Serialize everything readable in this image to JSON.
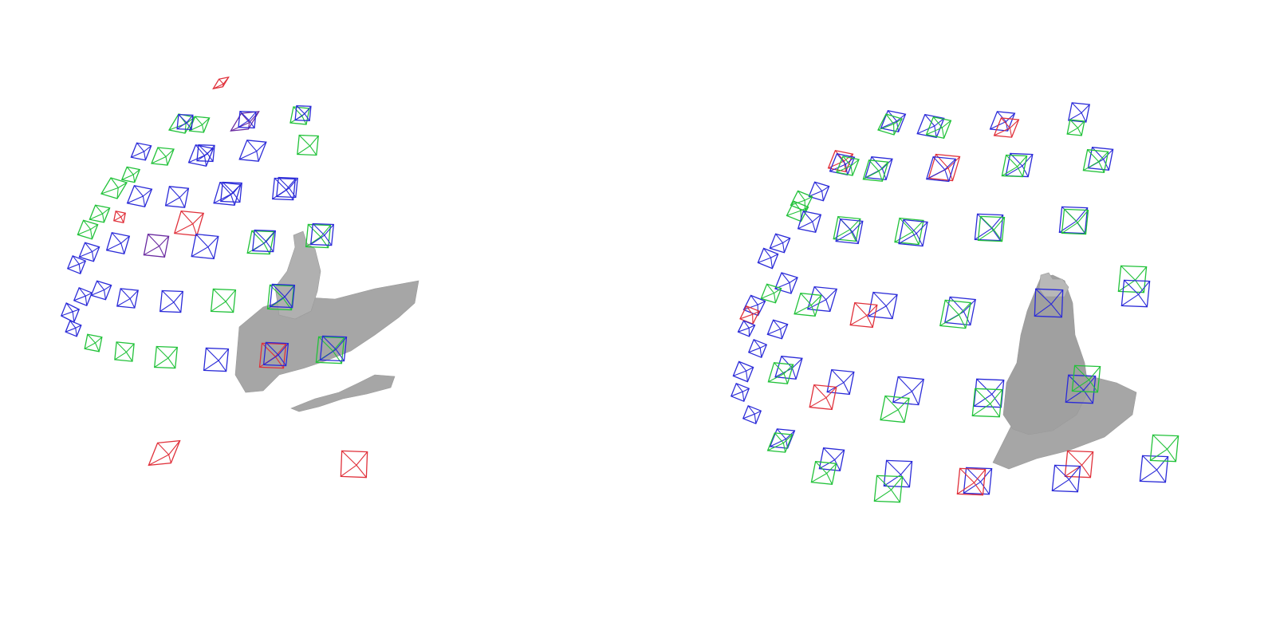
{
  "figure": {
    "panels": [
      {
        "id": "left"
      },
      {
        "id": "right"
      }
    ]
  },
  "legend_colors": {
    "ground_truth": "#22c23a",
    "estimated": "#2a2ad8",
    "failed": "#e0303a"
  },
  "mesh_color": "#a6a6a6"
}
